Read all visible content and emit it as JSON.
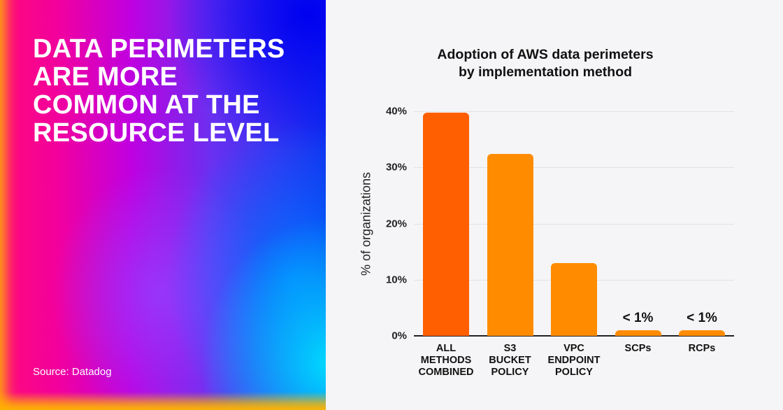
{
  "left_panel": {
    "headline_lines": [
      "DATA PERIMETERS",
      "ARE MORE",
      "COMMON AT THE",
      "RESOURCE LEVEL"
    ],
    "source": "Source: Datadog"
  },
  "chart": {
    "title_lines": [
      "Adoption of AWS data perimeters",
      "by implementation method"
    ],
    "ylabel": "% of organizations",
    "yticks": [
      "40%",
      "30%",
      "20%",
      "10%",
      "0%"
    ],
    "xlabels": [
      [
        "ALL",
        "METHODS",
        "COMBINED"
      ],
      [
        "S3",
        "BUCKET",
        "POLICY"
      ],
      [
        "VPC",
        "ENDPOINT",
        "POLICY"
      ],
      [
        "SCPs"
      ],
      [
        "RCPs"
      ]
    ],
    "bar_annotations": [
      "",
      "",
      "",
      "< 1%",
      "< 1%"
    ],
    "colors": {
      "primary": "#ff5f00",
      "secondary": "#ff8c00"
    }
  },
  "chart_data": {
    "type": "bar",
    "title": "Adoption of AWS data perimeters by implementation method",
    "xlabel": "",
    "ylabel": "% of organizations",
    "categories": [
      "ALL METHODS COMBINED",
      "S3 BUCKET POLICY",
      "VPC ENDPOINT POLICY",
      "SCPs",
      "RCPs"
    ],
    "values": [
      39.7,
      32.4,
      13.0,
      1.0,
      1.0
    ],
    "annotations": {
      "SCPs": "< 1%",
      "RCPs": "< 1%"
    },
    "ylim": [
      0,
      40
    ],
    "yticks": [
      0,
      10,
      20,
      30,
      40
    ],
    "ytick_format": "%",
    "grid": true,
    "legend": null,
    "colors": [
      "#ff5f00",
      "#ff8c00",
      "#ff8c00",
      "#ff8c00",
      "#ff8c00"
    ]
  }
}
